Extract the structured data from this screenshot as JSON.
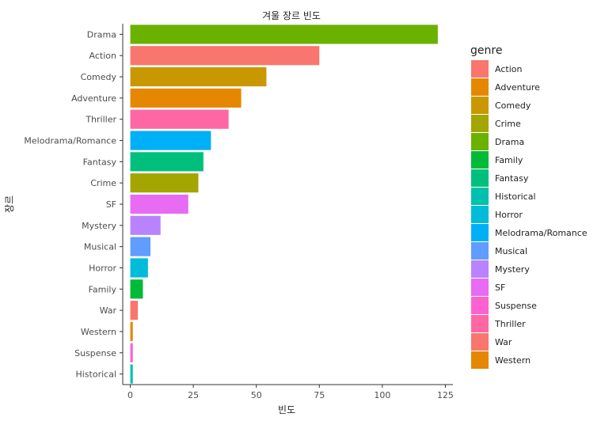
{
  "chart_data": {
    "type": "bar",
    "orientation": "horizontal",
    "title": "겨울 장르 빈도",
    "xlabel": "빈도",
    "ylabel": "장르",
    "xlim": [
      -3,
      128
    ],
    "xticks": [
      0,
      25,
      50,
      75,
      100,
      125
    ],
    "categories": [
      "Drama",
      "Action",
      "Comedy",
      "Adventure",
      "Thriller",
      "Melodrama/Romance",
      "Fantasy",
      "Crime",
      "SF",
      "Mystery",
      "Musical",
      "Horror",
      "Family",
      "War",
      "Western",
      "Suspense",
      "Historical"
    ],
    "values": [
      122,
      75,
      54,
      44,
      39,
      32,
      29,
      27,
      23,
      12,
      8,
      7,
      5,
      3,
      1,
      1,
      1
    ],
    "legend": {
      "title": "genre",
      "placement": "right",
      "entries": [
        "Action",
        "Adventure",
        "Comedy",
        "Crime",
        "Drama",
        "Family",
        "Fantasy",
        "Historical",
        "Horror",
        "Melodrama/Romance",
        "Musical",
        "Mystery",
        "SF",
        "Suspense",
        "Thriller",
        "War",
        "Western"
      ]
    },
    "colors": {
      "Action": "#F8766D",
      "Adventure": "#E58700",
      "Comedy": "#C99800",
      "Crime": "#A3A500",
      "Drama": "#6BB100",
      "Family": "#00BA38",
      "Fantasy": "#00BF7D",
      "Historical": "#00C0AF",
      "Horror": "#00BCD8",
      "Melodrama/Romance": "#00B0F6",
      "Musical": "#619CFF",
      "Mystery": "#B983FF",
      "SF": "#E76BF3",
      "Suspense": "#FD61D1",
      "Thriller": "#FF67A4",
      "War": "#F8766D",
      "Western": "#E58700"
    }
  }
}
